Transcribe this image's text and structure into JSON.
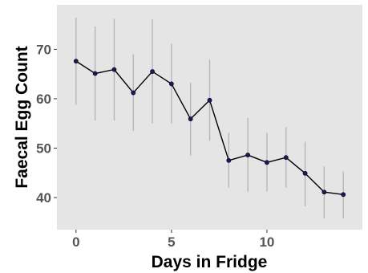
{
  "chart_data": {
    "type": "line",
    "title": "",
    "xlabel": "Days in Fridge",
    "ylabel": "Faecal Egg Count",
    "xlim": [
      -1,
      15
    ],
    "ylim": [
      33.5,
      79
    ],
    "x_ticks": [
      0,
      5,
      10
    ],
    "y_ticks": [
      40,
      50,
      60,
      70
    ],
    "grid": false,
    "error_bars": true,
    "colors": {
      "panel": "#e5e5e5",
      "line": "#000000",
      "point": "#1a1a66",
      "error_bar": "#b3b3b3",
      "tick_label": "#555555"
    },
    "x": [
      0,
      1,
      2,
      3,
      4,
      5,
      6,
      7,
      8,
      9,
      10,
      11,
      12,
      13,
      14
    ],
    "y": [
      67.6,
      65.1,
      65.9,
      61.2,
      65.5,
      63.0,
      55.9,
      59.7,
      47.5,
      48.6,
      47.1,
      48.1,
      44.9,
      41.1,
      40.6
    ],
    "y_lower": [
      58.8,
      55.6,
      55.6,
      53.5,
      55.0,
      55.0,
      48.5,
      51.5,
      42.0,
      41.1,
      41.2,
      42.0,
      38.2,
      35.8,
      35.8
    ],
    "y_upper": [
      76.4,
      74.6,
      76.2,
      69.0,
      76.1,
      71.1,
      63.2,
      67.9,
      53.1,
      56.1,
      53.1,
      54.2,
      51.3,
      46.3,
      45.3
    ]
  }
}
